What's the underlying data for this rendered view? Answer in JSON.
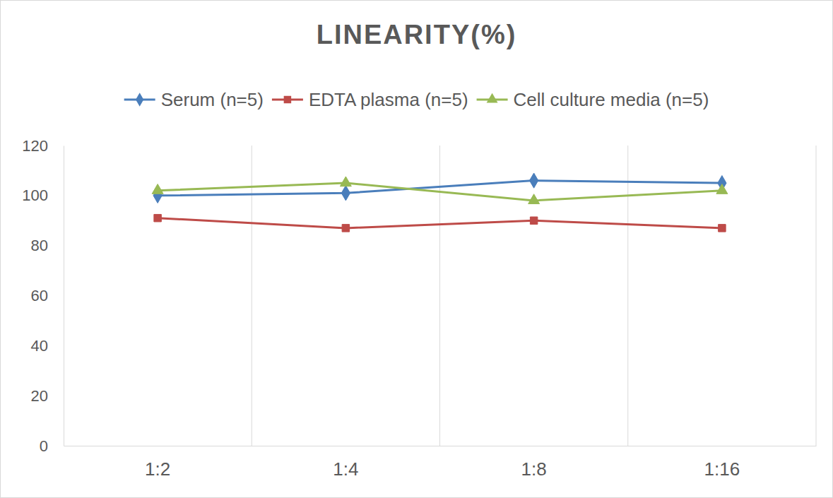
{
  "chart_data": {
    "type": "line",
    "title": "LINEARITY(%)",
    "categories": [
      "1:2",
      "1:4",
      "1:8",
      "1:16"
    ],
    "series": [
      {
        "name": "Serum (n=5)",
        "color": "#4a7ebb",
        "marker": "diamond",
        "line_style": "solid",
        "values": [
          100,
          101,
          106,
          105
        ]
      },
      {
        "name": "EDTA plasma (n=5)",
        "color": "#be4b48",
        "marker": "square",
        "line_style": "solid",
        "values": [
          91,
          87,
          90,
          87
        ]
      },
      {
        "name": "Cell culture media (n=5)",
        "color": "#98b954",
        "marker": "triangle",
        "line_style": "solid",
        "values": [
          102,
          105,
          98,
          102
        ]
      }
    ],
    "ylim": [
      0,
      120
    ],
    "yticks": [
      0,
      20,
      40,
      60,
      80,
      100,
      120
    ],
    "grid": true,
    "legend": "top"
  }
}
